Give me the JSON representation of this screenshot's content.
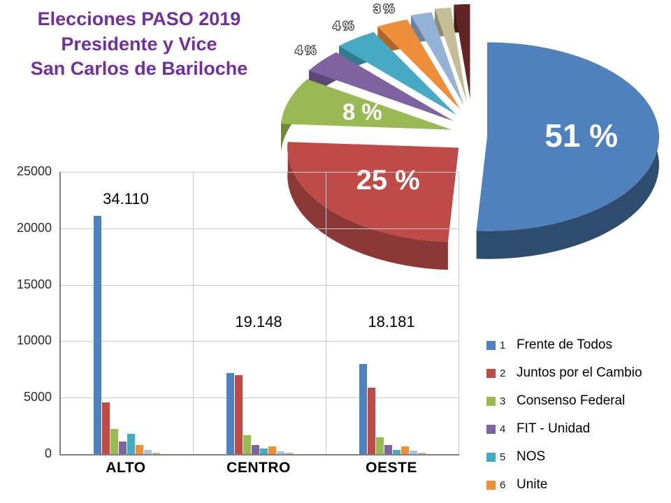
{
  "title": {
    "lines": [
      "Elecciones PASO 2019",
      "Presidente y Vice",
      "San Carlos de Bariloche"
    ],
    "color": "#7030A0"
  },
  "chart_data": [
    {
      "type": "pie",
      "unit": "%",
      "slices": [
        {
          "name": "Frente de Todos",
          "pct": 51,
          "label": "51 %",
          "color": "#4F81BD",
          "side": "#2E4D6E"
        },
        {
          "name": "Juntos por el Cambio",
          "pct": 25,
          "label": "25 %",
          "color": "#BE4B48",
          "side": "#8C3836"
        },
        {
          "name": "Consenso Federal",
          "pct": 8,
          "label": "8 %",
          "color": "#98B954",
          "side": "#6E883D"
        },
        {
          "name": "FIT - Unidad",
          "pct": 4,
          "label": "4 %",
          "color": "#7F63A1",
          "side": "#5C4875"
        },
        {
          "name": "NOS",
          "pct": 4,
          "label": "4 %",
          "color": "#46AAC5",
          "side": "#327B8F"
        },
        {
          "name": "Unite",
          "pct": 3,
          "label": "3 %",
          "color": "#EE8E38",
          "side": "#AE6728"
        },
        {
          "name": "",
          "pct": 2,
          "label": "",
          "color": "#95B3D7",
          "side": "#6D839D"
        },
        {
          "name": "",
          "pct": 1.5,
          "label": "",
          "color": "#C4BD97",
          "side": "#8F8A6E"
        },
        {
          "name": "",
          "pct": 1.5,
          "label": "",
          "color": "#622423",
          "side": "#451917"
        }
      ]
    },
    {
      "type": "bar",
      "categories": [
        "ALTO",
        "CENTRO",
        "OESTE"
      ],
      "y_ticks": [
        "0",
        "5000",
        "10000",
        "15000",
        "20000",
        "25000"
      ],
      "ylim": [
        0,
        25000
      ],
      "grid": true,
      "totals": [
        "34.110",
        "19.148",
        "18.181"
      ],
      "series": [
        {
          "name": "Frente de Todos",
          "color": "#4F81BD",
          "values": [
            21100,
            7200,
            8000
          ]
        },
        {
          "name": "Juntos por el Cambio",
          "color": "#BE4B48",
          "values": [
            4600,
            7000,
            5900
          ]
        },
        {
          "name": "Consenso Federal",
          "color": "#98B954",
          "values": [
            2200,
            1700,
            1500
          ]
        },
        {
          "name": "FIT - Unidad",
          "color": "#7F63A1",
          "values": [
            1100,
            800,
            800
          ]
        },
        {
          "name": "NOS",
          "color": "#46AAC5",
          "values": [
            1800,
            500,
            400
          ]
        },
        {
          "name": "Unite",
          "color": "#EE8E38",
          "values": [
            800,
            700,
            700
          ]
        },
        {
          "name": "",
          "color": "#A9C4E5",
          "values": [
            400,
            250,
            300
          ]
        },
        {
          "name": "",
          "color": "#C4BD97",
          "values": [
            150,
            100,
            100
          ]
        }
      ]
    }
  ],
  "legend": {
    "items": [
      {
        "num": "1",
        "label": "Frente de Todos",
        "color": "#4F81BD"
      },
      {
        "num": "2",
        "label": "Juntos por el Cambio",
        "color": "#BE4B48"
      },
      {
        "num": "3",
        "label": "Consenso Federal",
        "color": "#98B954"
      },
      {
        "num": "4",
        "label": "FIT - Unidad",
        "color": "#7F63A1"
      },
      {
        "num": "5",
        "label": "NOS",
        "color": "#46AAC5"
      },
      {
        "num": "6",
        "label": "Unite",
        "color": "#EE8E38"
      }
    ]
  }
}
